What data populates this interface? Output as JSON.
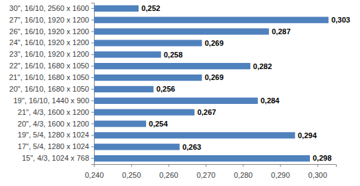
{
  "chart_data": {
    "type": "bar",
    "orientation": "horizontal",
    "categories": [
      "30\", 16/10, 2560 x 1600",
      "27\", 16/10, 1920 x 1200",
      "26\", 16/10, 1920 x 1200",
      "24\", 16/10, 1920 x 1200",
      "23\", 16/10, 1920 x 1200",
      "22\", 16/10, 1680 x 1050",
      "21'', 16/10, 1680 x 1050",
      "20\", 16/10, 1680 x 1050",
      "19'', 16/10, 1440 x 900",
      "21\", 4/3, 1600 x 1200",
      "20\", 4/3, 1600 x 1200",
      "19\", 5/4, 1280 x 1024",
      "17\", 5/4, 1280 x 1024",
      "15\", 4/3, 1024 x 768"
    ],
    "values": [
      0.252,
      0.303,
      0.287,
      0.269,
      0.258,
      0.282,
      0.269,
      0.256,
      0.284,
      0.267,
      0.254,
      0.294,
      0.263,
      0.298
    ],
    "value_labels": [
      "0,252",
      "0,303",
      "0,287",
      "0,269",
      "0,258",
      "0,282",
      "0,269",
      "0,256",
      "0,284",
      "0,267",
      "0,254",
      "0,294",
      "0,263",
      "0,298"
    ],
    "color": "#4f81bd",
    "xlim": [
      0.24,
      0.305
    ],
    "xticks": [
      {
        "value": 0.24,
        "label": "0,240"
      },
      {
        "value": 0.25,
        "label": "0,250"
      },
      {
        "value": 0.26,
        "label": "0,260"
      },
      {
        "value": 0.27,
        "label": "0,270"
      },
      {
        "value": 0.28,
        "label": "0,280"
      },
      {
        "value": 0.29,
        "label": "0,290"
      },
      {
        "value": 0.3,
        "label": "0,300"
      }
    ],
    "data_labels": true,
    "grid": false
  }
}
